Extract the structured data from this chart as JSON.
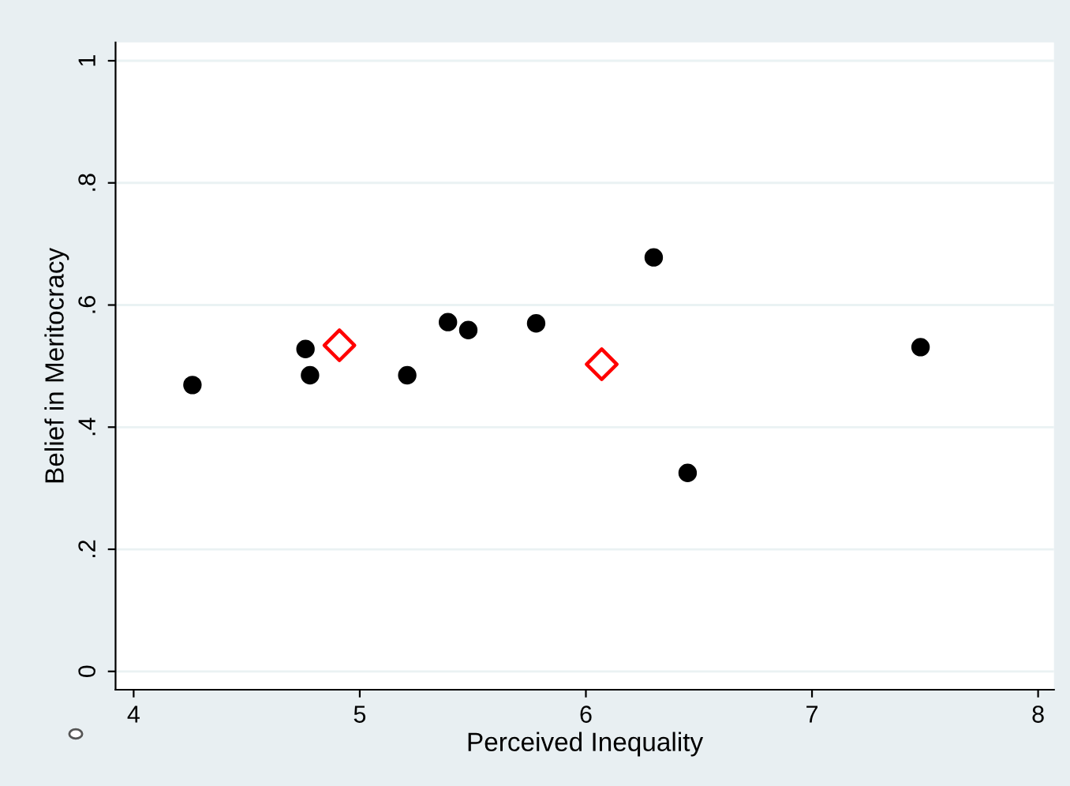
{
  "chart_data": {
    "type": "scatter",
    "xlabel": "Perceived Inequality",
    "ylabel": "Belief in Meritocracy",
    "xlim": [
      3.92,
      8.07
    ],
    "ylim": [
      -0.03,
      1.03
    ],
    "xticks": [
      4,
      5,
      6,
      7,
      8
    ],
    "yticks": [
      {
        "value": 0,
        "label": "0"
      },
      {
        "value": 0.2,
        "label": ".2"
      },
      {
        "value": 0.4,
        "label": ".4"
      },
      {
        "value": 0.6,
        "label": ".6"
      },
      {
        "value": 0.8,
        "label": ".8"
      },
      {
        "value": 1,
        "label": "1"
      }
    ],
    "grid": "y",
    "legend": false,
    "series": [
      {
        "color": "#000000",
        "marker": "circle",
        "x": [
          4.26,
          4.76,
          4.78,
          5.21,
          5.39,
          5.48,
          5.78,
          6.3,
          6.45,
          7.48
        ],
        "values": [
          0.469,
          0.528,
          0.485,
          0.485,
          0.572,
          0.559,
          0.57,
          0.678,
          0.325,
          0.531
        ]
      },
      {
        "color": "#ff0000",
        "marker": "diamond",
        "x": [
          4.91,
          6.07
        ],
        "values": [
          0.534,
          0.503
        ]
      }
    ]
  }
}
